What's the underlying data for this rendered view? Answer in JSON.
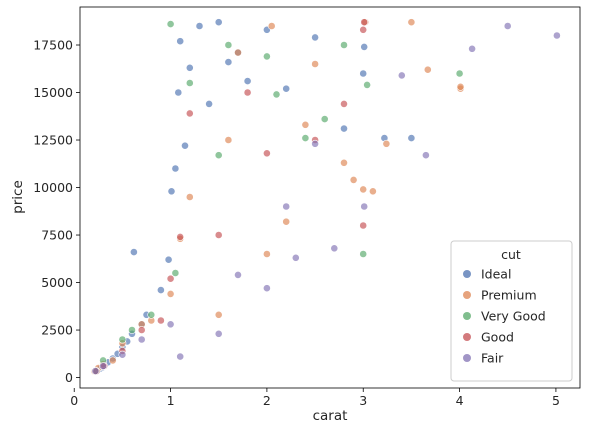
{
  "chart_data": {
    "type": "scatter",
    "xlabel": "carat",
    "ylabel": "price",
    "xlim": [
      0.06,
      5.25
    ],
    "ylim": [
      -550,
      19500
    ],
    "x_ticks": [
      0,
      1,
      2,
      3,
      4,
      5
    ],
    "y_ticks": [
      0,
      2500,
      5000,
      7500,
      10000,
      12500,
      15000,
      17500
    ],
    "grid": false,
    "legend": {
      "title": "cut",
      "placement": "lower-right"
    },
    "series": [
      {
        "name": "Ideal",
        "color": "#4c72b0",
        "points": [
          [
            0.23,
            326
          ],
          [
            0.27,
            470
          ],
          [
            0.3,
            550
          ],
          [
            0.31,
            600
          ],
          [
            0.35,
            800
          ],
          [
            0.4,
            1000
          ],
          [
            0.45,
            1250
          ],
          [
            0.5,
            1600
          ],
          [
            0.55,
            1900
          ],
          [
            0.6,
            2300
          ],
          [
            0.62,
            6600
          ],
          [
            0.7,
            2800
          ],
          [
            0.75,
            3300
          ],
          [
            0.9,
            4600
          ],
          [
            0.98,
            6200
          ],
          [
            1.01,
            9800
          ],
          [
            1.05,
            11000
          ],
          [
            1.08,
            15000
          ],
          [
            1.1,
            17700
          ],
          [
            1.15,
            12200
          ],
          [
            1.2,
            16300
          ],
          [
            1.3,
            18500
          ],
          [
            1.4,
            14400
          ],
          [
            1.5,
            18700
          ],
          [
            1.6,
            16600
          ],
          [
            1.7,
            17100
          ],
          [
            1.8,
            15600
          ],
          [
            2.0,
            18300
          ],
          [
            2.2,
            15200
          ],
          [
            2.5,
            17900
          ],
          [
            2.8,
            13100
          ],
          [
            3.0,
            16000
          ],
          [
            3.01,
            17400
          ],
          [
            3.22,
            12600
          ],
          [
            3.5,
            12600
          ]
        ]
      },
      {
        "name": "Premium",
        "color": "#dd8452",
        "points": [
          [
            0.21,
            326
          ],
          [
            0.25,
            500
          ],
          [
            0.3,
            700
          ],
          [
            0.4,
            900
          ],
          [
            0.5,
            1800
          ],
          [
            0.7,
            2800
          ],
          [
            0.8,
            3000
          ],
          [
            1.0,
            4400
          ],
          [
            1.1,
            7300
          ],
          [
            1.2,
            9500
          ],
          [
            1.5,
            3300
          ],
          [
            1.6,
            12500
          ],
          [
            1.7,
            17100
          ],
          [
            2.0,
            6500
          ],
          [
            2.05,
            18500
          ],
          [
            2.2,
            8200
          ],
          [
            2.4,
            13300
          ],
          [
            2.5,
            16500
          ],
          [
            2.8,
            11300
          ],
          [
            2.9,
            10400
          ],
          [
            3.0,
            9900
          ],
          [
            3.02,
            18700
          ],
          [
            3.1,
            9800
          ],
          [
            3.24,
            12300
          ],
          [
            3.5,
            18700
          ],
          [
            3.67,
            16200
          ],
          [
            4.01,
            15200
          ],
          [
            4.01,
            15300
          ]
        ]
      },
      {
        "name": "Very Good",
        "color": "#55a868",
        "points": [
          [
            0.23,
            336
          ],
          [
            0.3,
            900
          ],
          [
            0.5,
            2000
          ],
          [
            0.6,
            2500
          ],
          [
            0.8,
            3300
          ],
          [
            1.0,
            18600
          ],
          [
            1.05,
            5500
          ],
          [
            1.2,
            15500
          ],
          [
            1.5,
            11700
          ],
          [
            1.6,
            17500
          ],
          [
            2.0,
            16900
          ],
          [
            2.1,
            14900
          ],
          [
            2.4,
            12600
          ],
          [
            2.6,
            13600
          ],
          [
            2.8,
            17500
          ],
          [
            3.0,
            6500
          ],
          [
            3.04,
            15400
          ],
          [
            4.0,
            16000
          ]
        ]
      },
      {
        "name": "Good",
        "color": "#c44e52",
        "points": [
          [
            0.23,
            327
          ],
          [
            0.31,
            600
          ],
          [
            0.5,
            1400
          ],
          [
            0.7,
            2500
          ],
          [
            0.9,
            3000
          ],
          [
            1.0,
            5200
          ],
          [
            1.1,
            7400
          ],
          [
            1.2,
            13900
          ],
          [
            1.5,
            7500
          ],
          [
            1.8,
            15000
          ],
          [
            2.0,
            11800
          ],
          [
            2.5,
            12500
          ],
          [
            2.8,
            14400
          ],
          [
            3.0,
            8000
          ],
          [
            3.0,
            18300
          ],
          [
            3.01,
            18700
          ]
        ]
      },
      {
        "name": "Fair",
        "color": "#8172b3",
        "points": [
          [
            0.22,
            337
          ],
          [
            0.3,
            600
          ],
          [
            0.5,
            1200
          ],
          [
            0.7,
            2000
          ],
          [
            1.0,
            2800
          ],
          [
            1.1,
            1100
          ],
          [
            1.5,
            2300
          ],
          [
            1.7,
            5400
          ],
          [
            2.0,
            4700
          ],
          [
            2.2,
            9000
          ],
          [
            2.3,
            6300
          ],
          [
            2.5,
            12300
          ],
          [
            2.7,
            6800
          ],
          [
            3.01,
            9000
          ],
          [
            3.4,
            15900
          ],
          [
            3.65,
            11700
          ],
          [
            4.13,
            17300
          ],
          [
            4.5,
            18500
          ],
          [
            5.01,
            18000
          ]
        ]
      }
    ]
  }
}
